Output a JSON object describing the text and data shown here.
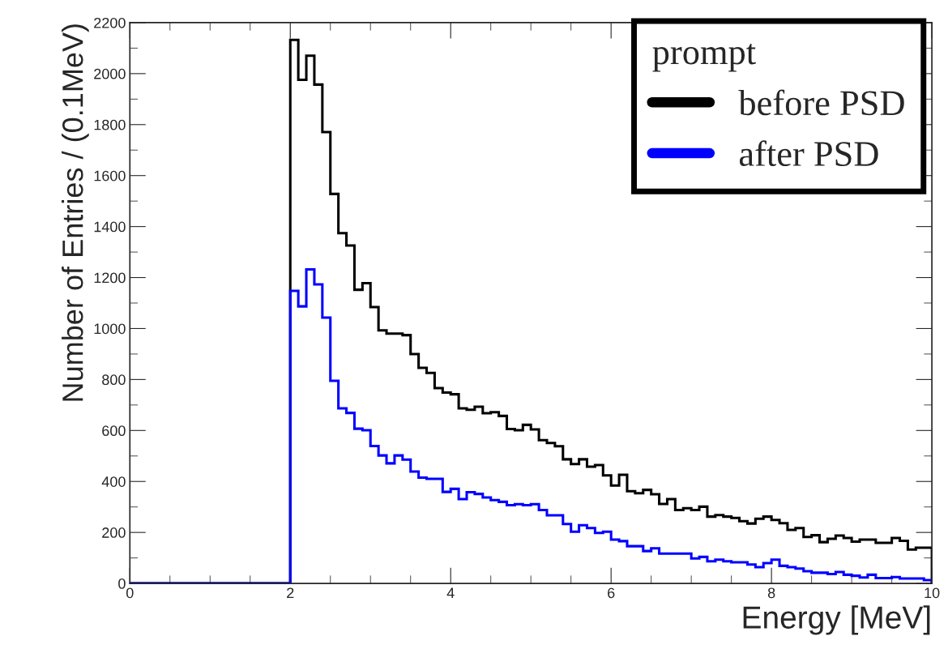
{
  "chart_data": {
    "type": "histogram",
    "xlabel": "Energy [MeV]",
    "ylabel": "Number of Entries / (0.1MeV)",
    "legend_title": "prompt",
    "bins": [
      0,
      0.1,
      0.2,
      0.3,
      0.4,
      0.5,
      0.6,
      0.7,
      0.8,
      0.9,
      1,
      1.1,
      1.2,
      1.3,
      1.4,
      1.5,
      1.6,
      1.7,
      1.8,
      1.9,
      2,
      2.1,
      2.2,
      2.3,
      2.4,
      2.5,
      2.6,
      2.7,
      2.8,
      2.9,
      3,
      3.1,
      3.2,
      3.3,
      3.4,
      3.5,
      3.6,
      3.7,
      3.8,
      3.9,
      4,
      4.1,
      4.2,
      4.3,
      4.4,
      4.5,
      4.6,
      4.7,
      4.8,
      4.9,
      5,
      5.1,
      5.2,
      5.3,
      5.4,
      5.5,
      5.6,
      5.7,
      5.8,
      5.9,
      6,
      6.1,
      6.2,
      6.3,
      6.4,
      6.5,
      6.6,
      6.7,
      6.8,
      6.9,
      7,
      7.1,
      7.2,
      7.3,
      7.4,
      7.5,
      7.6,
      7.7,
      7.8,
      7.9,
      8,
      8.1,
      8.2,
      8.3,
      8.4,
      8.5,
      8.6,
      8.7,
      8.8,
      8.9,
      9,
      9.1,
      9.2,
      9.3,
      9.4,
      9.5,
      9.6,
      9.7,
      9.8,
      9.9,
      10
    ],
    "series": [
      {
        "name": "before PSD",
        "color": "#000000",
        "values": [
          0,
          0,
          0,
          0,
          0,
          0,
          0,
          0,
          0,
          0,
          0,
          0,
          0,
          0,
          0,
          0,
          0,
          0,
          0,
          0,
          2132,
          1976,
          2070,
          1957,
          1771,
          1528,
          1374,
          1326,
          1152,
          1178,
          1084,
          993,
          980,
          980,
          974,
          900,
          846,
          826,
          766,
          749,
          742,
          687,
          681,
          693,
          668,
          672,
          657,
          606,
          601,
          622,
          604,
          562,
          551,
          538,
          487,
          468,
          487,
          458,
          464,
          424,
          384,
          426,
          362,
          354,
          367,
          350,
          312,
          331,
          288,
          295,
          288,
          301,
          262,
          268,
          262,
          257,
          244,
          235,
          254,
          262,
          249,
          236,
          210,
          217,
          182,
          189,
          162,
          175,
          188,
          178,
          164,
          172,
          172,
          159,
          159,
          178,
          167,
          133,
          140,
          140
        ]
      },
      {
        "name": "after PSD",
        "color": "#0000ff",
        "values": [
          0,
          0,
          0,
          0,
          0,
          0,
          0,
          0,
          0,
          0,
          0,
          0,
          0,
          0,
          0,
          0,
          0,
          0,
          0,
          0,
          1148,
          1087,
          1232,
          1173,
          1043,
          795,
          687,
          669,
          607,
          601,
          539,
          502,
          471,
          502,
          486,
          439,
          415,
          410,
          410,
          359,
          371,
          331,
          358,
          351,
          337,
          327,
          320,
          307,
          311,
          307,
          311,
          288,
          267,
          267,
          233,
          203,
          228,
          217,
          198,
          203,
          172,
          166,
          146,
          146,
          127,
          138,
          117,
          117,
          117,
          117,
          98,
          104,
          87,
          93,
          87,
          83,
          83,
          74,
          64,
          80,
          93,
          69,
          64,
          58,
          48,
          42,
          42,
          37,
          45,
          34,
          30,
          23,
          34,
          21,
          21,
          25,
          19,
          19,
          19,
          13
        ]
      }
    ],
    "xlim": [
      0,
      10
    ],
    "xticks": [
      0,
      2,
      4,
      6,
      8,
      10
    ],
    "ylim": [
      0,
      2200
    ],
    "yticks": [
      0,
      200,
      400,
      600,
      800,
      1000,
      1200,
      1400,
      1600,
      1800,
      2000,
      2200
    ],
    "grid": false,
    "legend": "top right"
  }
}
